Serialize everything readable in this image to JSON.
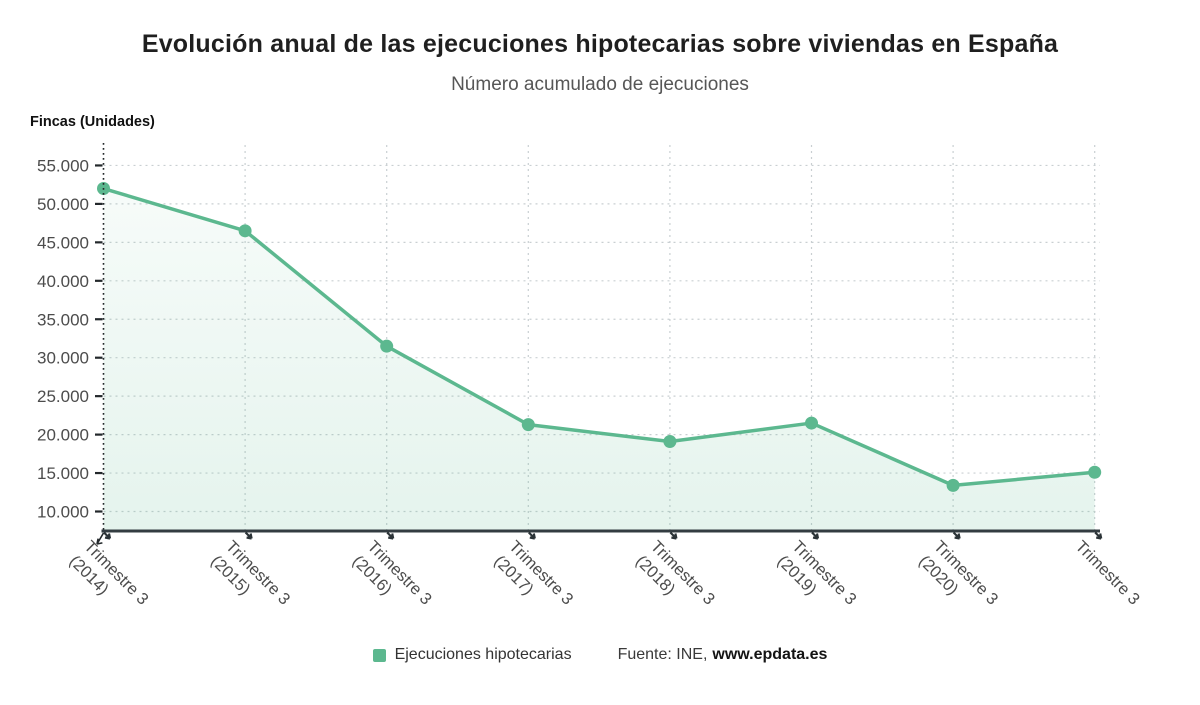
{
  "header": {
    "title": "Evolución anual de las ejecuciones hipotecarias sobre viviendas en España",
    "subtitle": "Número acumulado de ejecuciones"
  },
  "y_axis_title": "Fincas (Unidades)",
  "legend": {
    "series_label": "Ejecuciones hipotecarias",
    "source_prefix": "Fuente: INE,",
    "source_site": "www.epdata.es"
  },
  "colors": {
    "series": "#5cb88f",
    "grid": "#c9cfd2",
    "axis": "#333c41",
    "tick_text": "#4c4c4c",
    "area_top": "rgba(92,184,143,0.05)",
    "area_bottom": "rgba(92,184,143,0.16)"
  },
  "chart_data": {
    "type": "line",
    "title": "Evolución anual de las ejecuciones hipotecarias sobre viviendas en España",
    "subtitle": "Número acumulado de ejecuciones",
    "ylabel": "Fincas (Unidades)",
    "xlabel": "",
    "ylim": [
      10000,
      55000
    ],
    "ytick_step": 5000,
    "grid": true,
    "legend_position": "bottom",
    "x_labels": [
      {
        "line1": "Trimestre 3",
        "line2": "(2014)"
      },
      {
        "line1": "Trimestre 3",
        "line2": "(2015)"
      },
      {
        "line1": "Trimestre 3",
        "line2": "(2016)"
      },
      {
        "line1": "Trimestre 3",
        "line2": "(2017)"
      },
      {
        "line1": "Trimestre 3",
        "line2": "(2018)"
      },
      {
        "line1": "Trimestre 3",
        "line2": "(2019)"
      },
      {
        "line1": "Trimestre 3",
        "line2": "(2020)"
      },
      {
        "line1": "Trimestre 3",
        "line2": ""
      }
    ],
    "series": [
      {
        "name": "Ejecuciones hipotecarias",
        "values": [
          52000,
          46500,
          31500,
          21300,
          19100,
          21500,
          13400,
          15100
        ]
      }
    ]
  }
}
